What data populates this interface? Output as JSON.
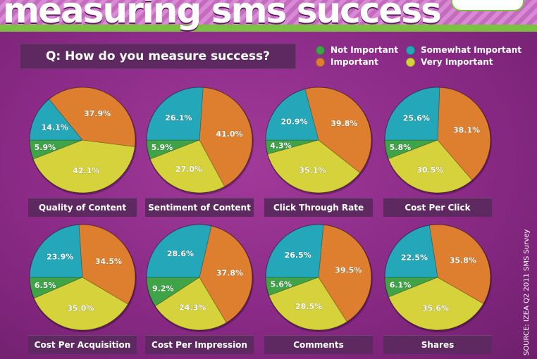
{
  "header": {
    "title": "measuring sms success"
  },
  "question": "Q: How do you measure success?",
  "legend": [
    {
      "label": "Not Important",
      "color": "#3fa348"
    },
    {
      "label": "Somewhat Important",
      "color": "#24a7b8"
    },
    {
      "label": "Important",
      "color": "#dd7f2f"
    },
    {
      "label": "Very Important",
      "color": "#d6d23c"
    }
  ],
  "source": "SOURCE: IZEA Q2 2011 SMS Survey",
  "chart_data": [
    {
      "type": "pie",
      "title": "Quality of Content",
      "labels": [
        "Not Important",
        "Somewhat Important",
        "Important",
        "Very Important"
      ],
      "values": [
        5.9,
        14.1,
        37.9,
        42.1
      ],
      "value_labels": [
        "5.9%",
        "14.1%",
        "37.9%",
        "42.1%"
      ]
    },
    {
      "type": "pie",
      "title": "Sentiment of Content",
      "labels": [
        "Not Important",
        "Somewhat Important",
        "Important",
        "Very Important"
      ],
      "values": [
        5.9,
        26.1,
        41.0,
        27.0
      ],
      "value_labels": [
        "5.9%",
        "26.1%",
        "41.0%",
        "27.0%"
      ]
    },
    {
      "type": "pie",
      "title": "Click Through Rate",
      "labels": [
        "Not Important",
        "Somewhat Important",
        "Important",
        "Very Important"
      ],
      "values": [
        4.3,
        20.9,
        39.8,
        35.1
      ],
      "value_labels": [
        "4.3%",
        "20.9%",
        "39.8%",
        "35.1%"
      ]
    },
    {
      "type": "pie",
      "title": "Cost Per Click",
      "labels": [
        "Not Important",
        "Somewhat Important",
        "Important",
        "Very Important"
      ],
      "values": [
        5.8,
        25.6,
        38.1,
        30.5
      ],
      "value_labels": [
        "5.8%",
        "25.6%",
        "38.1%",
        "30.5%"
      ]
    },
    {
      "type": "pie",
      "title": "Cost Per Acquisition",
      "labels": [
        "Not Important",
        "Somewhat Important",
        "Important",
        "Very Important"
      ],
      "values": [
        6.5,
        23.9,
        34.5,
        35.0
      ],
      "value_labels": [
        "6.5%",
        "23.9%",
        "34.5%",
        "35.0%"
      ]
    },
    {
      "type": "pie",
      "title": "Cost Per Impression",
      "labels": [
        "Not Important",
        "Somewhat Important",
        "Important",
        "Very Important"
      ],
      "values": [
        9.2,
        28.6,
        37.8,
        24.3
      ],
      "value_labels": [
        "9.2%",
        "28.6%",
        "37.8%",
        "24.3%"
      ]
    },
    {
      "type": "pie",
      "title": "Comments",
      "labels": [
        "Not Important",
        "Somewhat Important",
        "Important",
        "Very Important"
      ],
      "values": [
        5.6,
        26.5,
        39.5,
        28.5
      ],
      "value_labels": [
        "5.6%",
        "26.5%",
        "39.5%",
        "28.5%"
      ]
    },
    {
      "type": "pie",
      "title": "Shares",
      "labels": [
        "Not Important",
        "Somewhat Important",
        "Important",
        "Very Important"
      ],
      "values": [
        6.1,
        22.5,
        35.8,
        35.6
      ],
      "value_labels": [
        "6.1%",
        "22.5%",
        "35.8%",
        "35.6%"
      ]
    }
  ]
}
